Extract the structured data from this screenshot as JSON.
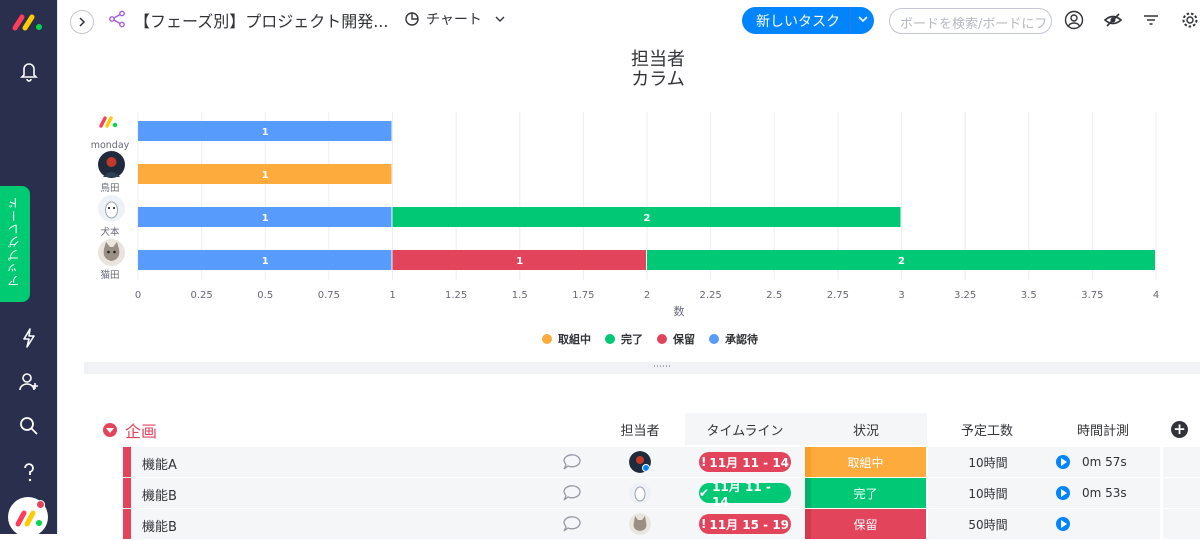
{
  "board": {
    "title": "【フェーズ別】プロジェクト開発...",
    "view_label": "チャート",
    "new_task_label": "新しいタスク",
    "search_placeholder": "ボードを検索/ボードにフ"
  },
  "rail": {
    "upgrade_label": "アップグレード"
  },
  "chart_data": {
    "type": "bar",
    "orientation": "horizontal",
    "stacked": true,
    "title": "担当者\nカラム",
    "title_lines": [
      "担当者",
      "カラム"
    ],
    "xlabel": "数",
    "xlim": [
      0,
      4
    ],
    "xticks": [
      "0",
      "0.25",
      "0.5",
      "0.75",
      "1",
      "1.25",
      "1.5",
      "1.75",
      "2",
      "2.25",
      "2.5",
      "2.75",
      "3",
      "3.25",
      "3.5",
      "3.75",
      "4"
    ],
    "categories": [
      "monday",
      "鳥田",
      "犬本",
      "猫田"
    ],
    "series": [
      {
        "name": "承認待",
        "color": "#579bfc",
        "values": [
          1,
          0,
          1,
          1
        ]
      },
      {
        "name": "保留",
        "color": "#e2445c",
        "values": [
          0,
          0,
          0,
          1
        ]
      },
      {
        "name": "完了",
        "color": "#00c875",
        "values": [
          0,
          0,
          2,
          2
        ]
      },
      {
        "name": "取組中",
        "color": "#fdab3d",
        "values": [
          0,
          1,
          0,
          0
        ]
      }
    ],
    "legend": [
      "取組中",
      "完了",
      "保留",
      "承認待"
    ],
    "legend_colors": [
      "#fdab3d",
      "#00c875",
      "#e2445c",
      "#579bfc"
    ],
    "legend_position": "bottom",
    "grid": true
  },
  "table": {
    "group_name": "企画",
    "columns": {
      "person": "担当者",
      "timeline": "タイムライン",
      "status": "状況",
      "estimate": "予定工数",
      "timer": "時間計測"
    },
    "rows": [
      {
        "name": "機能A",
        "timeline": "11月 11 - 14",
        "timeline_flag": "!",
        "timeline_color": "#e2445c",
        "status": "取組中",
        "status_color": "#fdab3d",
        "estimate": "10時間",
        "timer": "0m 57s"
      },
      {
        "name": "機能B",
        "timeline": "11月 11 - 14",
        "timeline_flag": "✔",
        "timeline_color": "#00c875",
        "status": "完了",
        "status_color": "#00c875",
        "estimate": "10時間",
        "timer": "0m 53s"
      },
      {
        "name": "機能B",
        "timeline": "11月 15 - 19",
        "timeline_flag": "!",
        "timeline_color": "#e2445c",
        "status": "保留",
        "status_color": "#e2445c",
        "estimate": "50時間",
        "timer": ""
      }
    ]
  }
}
